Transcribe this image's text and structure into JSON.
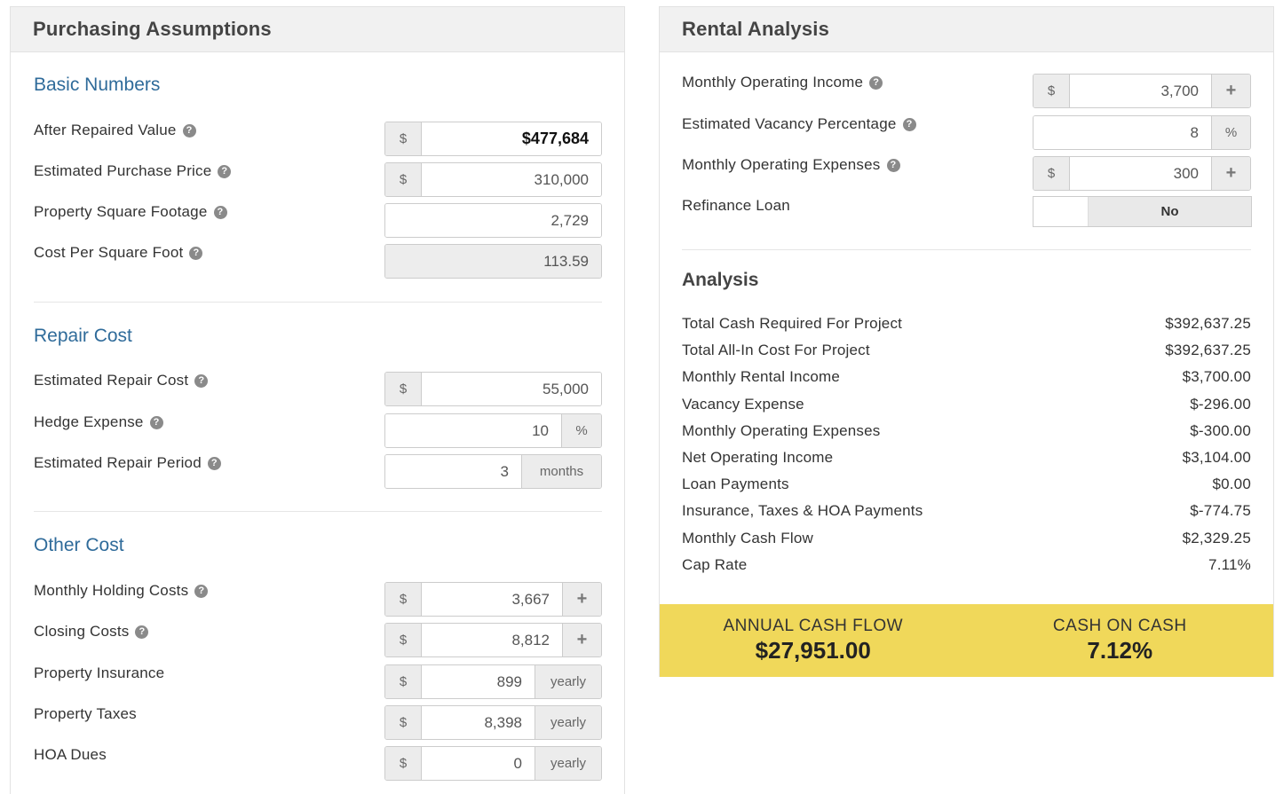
{
  "left": {
    "title": "Purchasing Assumptions",
    "basic": {
      "title": "Basic Numbers",
      "arv": {
        "label": "After Repaired Value",
        "prefix": "$",
        "value": "$477,684"
      },
      "purchase": {
        "label": "Estimated Purchase Price",
        "prefix": "$",
        "value": "310,000"
      },
      "sqft": {
        "label": "Property Square Footage",
        "value": "2,729"
      },
      "cpsf": {
        "label": "Cost Per Square Foot",
        "value": "113.59"
      }
    },
    "repair": {
      "title": "Repair Cost",
      "cost": {
        "label": "Estimated Repair Cost",
        "prefix": "$",
        "value": "55,000"
      },
      "hedge": {
        "label": "Hedge Expense",
        "value": "10",
        "suffix": "%"
      },
      "period": {
        "label": "Estimated Repair Period",
        "value": "3",
        "suffix": "months"
      }
    },
    "other": {
      "title": "Other Cost",
      "holding": {
        "label": "Monthly Holding Costs",
        "prefix": "$",
        "value": "3,667",
        "plus": "+"
      },
      "closing": {
        "label": "Closing Costs",
        "prefix": "$",
        "value": "8,812",
        "plus": "+"
      },
      "insurance": {
        "label": "Property Insurance",
        "prefix": "$",
        "value": "899",
        "suffix": "yearly"
      },
      "taxes": {
        "label": "Property Taxes",
        "prefix": "$",
        "value": "8,398",
        "suffix": "yearly"
      },
      "hoa": {
        "label": "HOA Dues",
        "prefix": "$",
        "value": "0",
        "suffix": "yearly"
      }
    }
  },
  "right": {
    "title": "Rental Analysis",
    "income": {
      "label": "Monthly Operating Income",
      "prefix": "$",
      "value": "3,700",
      "plus": "+"
    },
    "vacancy": {
      "label": "Estimated Vacancy Percentage",
      "value": "8",
      "suffix": "%"
    },
    "expenses": {
      "label": "Monthly Operating Expenses",
      "prefix": "$",
      "value": "300",
      "plus": "+"
    },
    "refinance": {
      "label": "Refinance Loan",
      "state": "No"
    },
    "analysis": {
      "title": "Analysis",
      "rows": [
        {
          "label": "Total Cash Required For Project",
          "value": "$392,637.25"
        },
        {
          "label": "Total All-In Cost For Project",
          "value": "$392,637.25"
        },
        {
          "label": "Monthly Rental Income",
          "value": "$3,700.00"
        },
        {
          "label": "Vacancy Expense",
          "value": "$-296.00"
        },
        {
          "label": "Monthly Operating Expenses",
          "value": "$-300.00"
        },
        {
          "label": "Net Operating Income",
          "value": "$3,104.00"
        },
        {
          "label": "Loan Payments",
          "value": "$0.00"
        },
        {
          "label": "Insurance, Taxes & HOA Payments",
          "value": "$-774.75"
        },
        {
          "label": "Monthly Cash Flow",
          "value": "$2,329.25"
        },
        {
          "label": "Cap Rate",
          "value": "7.11%"
        }
      ]
    },
    "summary": {
      "annual_label": "ANNUAL CASH FLOW",
      "annual_value": "$27,951.00",
      "coc_label": "CASH ON CASH",
      "coc_value": "7.12%"
    }
  },
  "help_glyph": "?",
  "colors": {
    "section_title": "#2f6b9a",
    "summary_bg": "#f0d85a"
  }
}
